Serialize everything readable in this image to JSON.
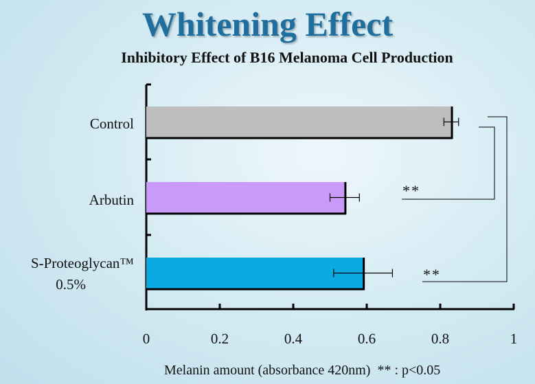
{
  "chart_data": {
    "type": "bar",
    "orientation": "horizontal",
    "title": "Whitening Effect",
    "subtitle": "Inhibitory Effect of B16 Melanoma Cell Production",
    "categories": [
      {
        "label": "Control",
        "label2": ""
      },
      {
        "label": "Arbutin",
        "label2": ""
      },
      {
        "label": "S-Proteoglycan™",
        "label2": "0.5%"
      }
    ],
    "values": [
      0.83,
      0.54,
      0.59
    ],
    "errors": [
      0.02,
      0.04,
      0.08
    ],
    "colors": [
      "#bebebe",
      "#c99af9",
      "#0aaae2"
    ],
    "xlim": [
      0,
      1
    ],
    "xticks": [
      "0",
      "0.2",
      "0.4",
      "0.6",
      "0.8",
      "1"
    ],
    "xlabel": "Melanin amount (absorbance 420nm)",
    "significance_note": "** : p<0.05",
    "significance_marks": [
      "**",
      "**"
    ],
    "grid": false
  }
}
